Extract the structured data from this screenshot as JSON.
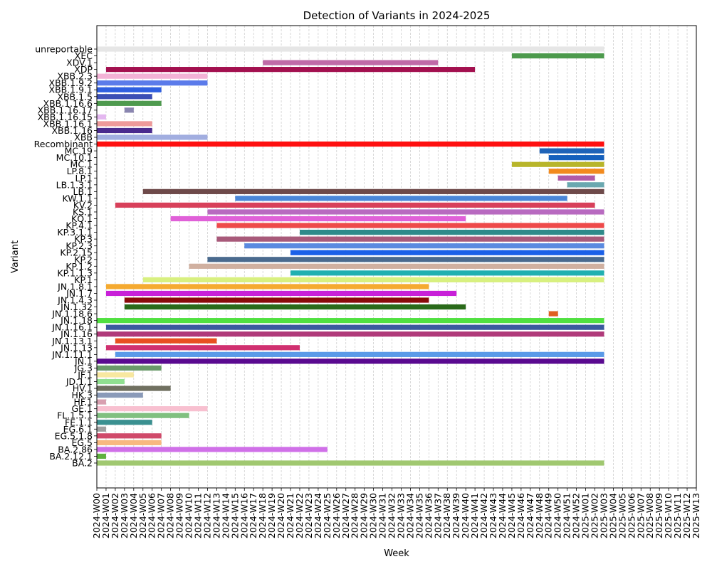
{
  "chart_data": {
    "type": "gantt",
    "title": "Detection of Variants in 2024-2025",
    "xlabel": "Week",
    "ylabel": "Variant",
    "x_ticks": [
      "2024-W00",
      "2024-W01",
      "2024-W02",
      "2024-W03",
      "2024-W04",
      "2024-W05",
      "2024-W06",
      "2024-W07",
      "2024-W08",
      "2024-W09",
      "2024-W10",
      "2024-W11",
      "2024-W12",
      "2024-W13",
      "2024-W14",
      "2024-W15",
      "2024-W16",
      "2024-W17",
      "2024-W18",
      "2024-W19",
      "2024-W20",
      "2024-W21",
      "2024-W22",
      "2024-W23",
      "2024-W24",
      "2024-W25",
      "2024-W26",
      "2024-W27",
      "2024-W28",
      "2024-W29",
      "2024-W30",
      "2024-W31",
      "2024-W32",
      "2024-W33",
      "2024-W34",
      "2024-W35",
      "2024-W36",
      "2024-W37",
      "2024-W38",
      "2024-W39",
      "2024-W40",
      "2024-W41",
      "2024-W42",
      "2024-W43",
      "2024-W44",
      "2024-W45",
      "2024-W46",
      "2024-W47",
      "2024-W48",
      "2024-W49",
      "2024-W50",
      "2024-W51",
      "2024-W52",
      "2025-W01",
      "2025-W02",
      "2025-W03",
      "2025-W04",
      "2025-W05",
      "2025-W06",
      "2025-W07",
      "2025-W08",
      "2025-W09",
      "2025-W10",
      "2025-W11",
      "2025-W12",
      "2025-W13"
    ],
    "grid": "vertical-dashed",
    "variants": [
      {
        "name": "unreportable",
        "start": 0,
        "end": 55,
        "color": "#e6e6e6"
      },
      {
        "name": "XEC",
        "start": 45,
        "end": 55,
        "color": "#4c9a4c"
      },
      {
        "name": "XDV.1",
        "start": 18,
        "end": 37,
        "color": "#c06aa8"
      },
      {
        "name": "XDP",
        "start": 1,
        "end": 41,
        "color": "#a3104f"
      },
      {
        "name": "XBB.2.3",
        "start": 0,
        "end": 12,
        "color": "#f3b3d6"
      },
      {
        "name": "XBB.1.9.2",
        "start": 0,
        "end": 12,
        "color": "#5b7bea"
      },
      {
        "name": "XBB.1.9.1",
        "start": 0,
        "end": 7,
        "color": "#2f5fe0"
      },
      {
        "name": "XBB.1.5",
        "start": 0,
        "end": 6,
        "color": "#3b4fb5"
      },
      {
        "name": "XBB.1.16.6",
        "start": 0,
        "end": 7,
        "color": "#4e9a4e"
      },
      {
        "name": "XBB.1.16.17",
        "start": 3,
        "end": 4,
        "color": "#8a86b0"
      },
      {
        "name": "XBB.1.16.15",
        "start": 0,
        "end": 1,
        "color": "#e4b8f0"
      },
      {
        "name": "XBB.1.16.1",
        "start": 0,
        "end": 6,
        "color": "#ee9a9a"
      },
      {
        "name": "XBB.1.16",
        "start": 0,
        "end": 6,
        "color": "#4a2a8e"
      },
      {
        "name": "XBB",
        "start": 0,
        "end": 12,
        "color": "#a2aee0"
      },
      {
        "name": "Recombinant",
        "start": 0,
        "end": 55,
        "color": "#ff1010"
      },
      {
        "name": "MC.19",
        "start": 48,
        "end": 55,
        "color": "#1f63b8"
      },
      {
        "name": "MC.10.1",
        "start": 49,
        "end": 55,
        "color": "#1560bd"
      },
      {
        "name": "MC.1",
        "start": 45,
        "end": 55,
        "color": "#b8b52a"
      },
      {
        "name": "LP.8.1",
        "start": 49,
        "end": 55,
        "color": "#f28a1e"
      },
      {
        "name": "LP.1",
        "start": 50,
        "end": 54,
        "color": "#b05aa8"
      },
      {
        "name": "LB.1.3.1",
        "start": 51,
        "end": 55,
        "color": "#6aa8b0"
      },
      {
        "name": "LB.1",
        "start": 5,
        "end": 55,
        "color": "#6e4a4a"
      },
      {
        "name": "KW.1.1",
        "start": 15,
        "end": 51,
        "color": "#4a86d8"
      },
      {
        "name": "KV.2",
        "start": 2,
        "end": 54,
        "color": "#d8405a"
      },
      {
        "name": "KS.1",
        "start": 12,
        "end": 55,
        "color": "#b86ac0"
      },
      {
        "name": "KQ.1",
        "start": 8,
        "end": 40,
        "color": "#e060d8"
      },
      {
        "name": "KP.4.1",
        "start": 13,
        "end": 55,
        "color": "#ee4a4a"
      },
      {
        "name": "KP.3.1.1",
        "start": 22,
        "end": 55,
        "color": "#2e8a8a"
      },
      {
        "name": "KP.3",
        "start": 13,
        "end": 55,
        "color": "#a85a7a"
      },
      {
        "name": "KP.2.3",
        "start": 16,
        "end": 55,
        "color": "#5a8ae0"
      },
      {
        "name": "KP.2.15",
        "start": 21,
        "end": 55,
        "color": "#1a60e8"
      },
      {
        "name": "KP.2",
        "start": 12,
        "end": 55,
        "color": "#4a6a8e"
      },
      {
        "name": "KP.1.2",
        "start": 10,
        "end": 55,
        "color": "#d0b0a0"
      },
      {
        "name": "KP.1.1.3",
        "start": 21,
        "end": 55,
        "color": "#20b0b0"
      },
      {
        "name": "KP.1",
        "start": 5,
        "end": 55,
        "color": "#d8f080"
      },
      {
        "name": "JN.1.8.1",
        "start": 1,
        "end": 36,
        "color": "#f5aa30"
      },
      {
        "name": "JN.1.7",
        "start": 1,
        "end": 39,
        "color": "#c820d8"
      },
      {
        "name": "JN.1.4.3",
        "start": 3,
        "end": 36,
        "color": "#8a0a0a"
      },
      {
        "name": "JN.1.32",
        "start": 3,
        "end": 40,
        "color": "#2a6a1a"
      },
      {
        "name": "JN.1.18.6",
        "start": 49,
        "end": 50,
        "color": "#e06020"
      },
      {
        "name": "JN.1.18",
        "start": 0,
        "end": 55,
        "color": "#50e040"
      },
      {
        "name": "JN.1.16.1",
        "start": 1,
        "end": 55,
        "color": "#3a5a9e"
      },
      {
        "name": "JN.1.16",
        "start": 0,
        "end": 55,
        "color": "#b03a7a"
      },
      {
        "name": "JN.1.13.1",
        "start": 2,
        "end": 13,
        "color": "#e85020"
      },
      {
        "name": "JN.1.13",
        "start": 1,
        "end": 22,
        "color": "#d03070"
      },
      {
        "name": "JN.1.11.1",
        "start": 2,
        "end": 55,
        "color": "#5a9ae8"
      },
      {
        "name": "JN.1",
        "start": 0,
        "end": 55,
        "color": "#5a0a90"
      },
      {
        "name": "JG.3",
        "start": 0,
        "end": 7,
        "color": "#6a9a6a"
      },
      {
        "name": "JF.1",
        "start": 0,
        "end": 4,
        "color": "#f8e8a0"
      },
      {
        "name": "JD.1.1",
        "start": 0,
        "end": 3,
        "color": "#90e090"
      },
      {
        "name": "HV.1",
        "start": 0,
        "end": 8,
        "color": "#707060"
      },
      {
        "name": "HK.3",
        "start": 0,
        "end": 5,
        "color": "#8a9ab8"
      },
      {
        "name": "HF.1",
        "start": 0,
        "end": 1,
        "color": "#d8a0b0"
      },
      {
        "name": "GE.1",
        "start": 0,
        "end": 12,
        "color": "#f8c0d0"
      },
      {
        "name": "FL.1.5.1",
        "start": 0,
        "end": 10,
        "color": "#80c080"
      },
      {
        "name": "FE.1.1",
        "start": 0,
        "end": 6,
        "color": "#3a9090"
      },
      {
        "name": "EG.6.1",
        "start": 0,
        "end": 1,
        "color": "#a0a0a0"
      },
      {
        "name": "EG.5.1.8",
        "start": 0,
        "end": 7,
        "color": "#d04a6a"
      },
      {
        "name": "EG.5",
        "start": 0,
        "end": 7,
        "color": "#f8b880"
      },
      {
        "name": "BA.2.86",
        "start": 0,
        "end": 25,
        "color": "#d070e8"
      },
      {
        "name": "BA.2.12.1",
        "start": 0,
        "end": 1,
        "color": "#60b040"
      },
      {
        "name": "BA.2",
        "start": 0,
        "end": 55,
        "color": "#a0c870"
      }
    ]
  }
}
